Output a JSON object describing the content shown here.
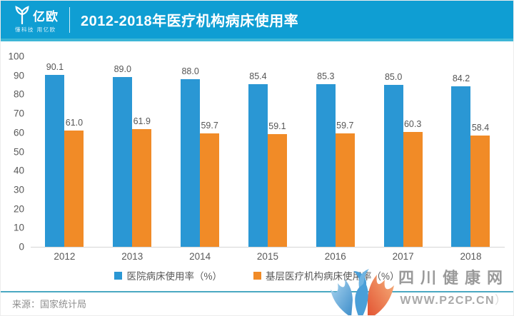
{
  "header": {
    "logo_text": "亿欧",
    "logo_tagline": "懂科技 用亿欧",
    "title": "2012-2018年医疗机构病床使用率"
  },
  "chart_data": {
    "type": "bar",
    "title": "2012-2018年医疗机构病床使用率",
    "categories": [
      "2012",
      "2013",
      "2014",
      "2015",
      "2016",
      "2017",
      "2018"
    ],
    "series": [
      {
        "name": "医院病床使用率（%）",
        "color": "#2a97d4",
        "values": [
          90.1,
          89.0,
          88.0,
          85.4,
          85.3,
          85.0,
          84.2
        ]
      },
      {
        "name": "基层医疗机构病床使用率（%）",
        "color": "#f18b27",
        "values": [
          61.0,
          61.9,
          59.7,
          59.1,
          59.7,
          60.3,
          58.4
        ]
      }
    ],
    "ylim": [
      0,
      100
    ],
    "y_ticks": [
      0,
      10,
      20,
      30,
      40,
      50,
      60,
      70,
      80,
      90,
      100
    ],
    "grid": false,
    "legend_position": "bottom"
  },
  "footer": {
    "source": "来源：国家统计局"
  },
  "watermark": {
    "site_name": "四川健康网",
    "site_url": "WWW.P2CP.CN",
    "trailing": "）"
  },
  "colors": {
    "header_bg": "#0f9ed3",
    "header_strip": "#3db6d6",
    "bar_blue": "#2a97d4",
    "bar_orange": "#f18b27",
    "divider_teal": "#4aa8c2"
  }
}
